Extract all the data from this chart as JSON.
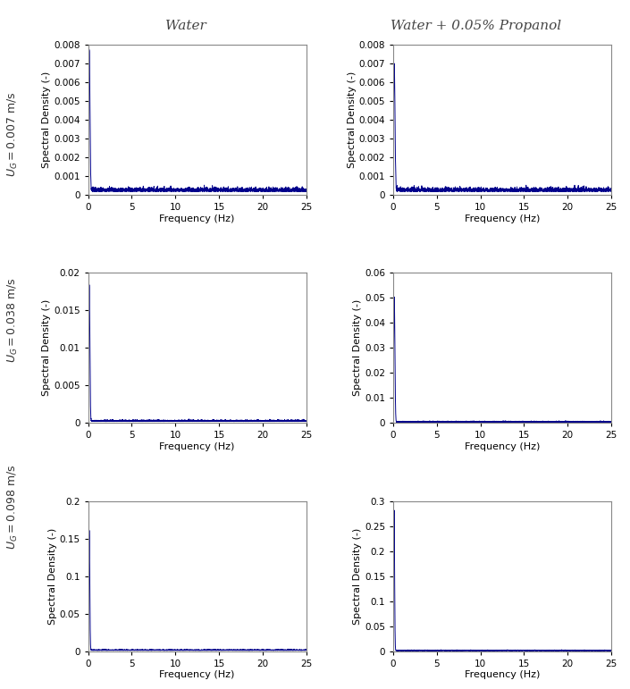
{
  "col_titles": [
    "Water",
    "Water + 0.05% Propanol"
  ],
  "xlabel": "Frequency (Hz)",
  "ylabel": "Spectral Density (-)",
  "xlim": [
    0,
    25
  ],
  "line_color": "#00008B",
  "line_width": 0.7,
  "plots": [
    {
      "peak": 0.0075,
      "peak_freq": 0.12,
      "peak_sigma": 0.08,
      "noise_mean": 0.00018,
      "noise_std": 0.00015,
      "ylim": [
        0,
        0.008
      ],
      "yticks": [
        0,
        0.001,
        0.002,
        0.003,
        0.004,
        0.005,
        0.006,
        0.007,
        0.008
      ],
      "yticklabels": [
        "0",
        "0.001",
        "0.002",
        "0.003",
        "0.004",
        "0.005",
        "0.006",
        "0.007",
        "0.008"
      ]
    },
    {
      "peak": 0.0068,
      "peak_freq": 0.12,
      "peak_sigma": 0.08,
      "noise_mean": 0.00018,
      "noise_std": 0.00015,
      "ylim": [
        0,
        0.008
      ],
      "yticks": [
        0,
        0.001,
        0.002,
        0.003,
        0.004,
        0.005,
        0.006,
        0.007,
        0.008
      ],
      "yticklabels": [
        "0",
        "0.001",
        "0.002",
        "0.003",
        "0.004",
        "0.005",
        "0.006",
        "0.007",
        "0.008"
      ]
    },
    {
      "peak": 0.018,
      "peak_freq": 0.12,
      "peak_sigma": 0.07,
      "noise_mean": 0.0002,
      "noise_std": 0.00015,
      "ylim": [
        0,
        0.02
      ],
      "yticks": [
        0,
        0.005,
        0.01,
        0.015,
        0.02
      ],
      "yticklabels": [
        "0",
        "0.005",
        "0.01",
        "0.015",
        "0.02"
      ]
    },
    {
      "peak": 0.05,
      "peak_freq": 0.12,
      "peak_sigma": 0.07,
      "noise_mean": 0.0003,
      "noise_std": 0.0003,
      "ylim": [
        0,
        0.06
      ],
      "yticks": [
        0,
        0.01,
        0.02,
        0.03,
        0.04,
        0.05,
        0.06
      ],
      "yticklabels": [
        "0",
        "0.01",
        "0.02",
        "0.03",
        "0.04",
        "0.05",
        "0.06"
      ]
    },
    {
      "peak": 0.16,
      "peak_freq": 0.12,
      "peak_sigma": 0.06,
      "noise_mean": 0.001,
      "noise_std": 0.0008,
      "ylim": [
        0,
        0.2
      ],
      "yticks": [
        0,
        0.05,
        0.1,
        0.15,
        0.2
      ],
      "yticklabels": [
        "0",
        "0.05",
        "0.1",
        "0.15",
        "0.2"
      ]
    },
    {
      "peak": 0.28,
      "peak_freq": 0.1,
      "peak_sigma": 0.055,
      "noise_mean": 0.001,
      "noise_std": 0.0008,
      "ylim": [
        0,
        0.3
      ],
      "yticks": [
        0,
        0.05,
        0.1,
        0.15,
        0.2,
        0.25,
        0.3
      ],
      "yticklabels": [
        "0",
        "0.05",
        "0.1",
        "0.15",
        "0.2",
        "0.25",
        "0.3"
      ]
    }
  ],
  "background_color": "#ffffff",
  "col_title_fontsize": 11,
  "label_fontsize": 8,
  "tick_fontsize": 7.5,
  "row_label_fontsize": 9,
  "row_label_color": "#333333",
  "spine_color": "#888888"
}
